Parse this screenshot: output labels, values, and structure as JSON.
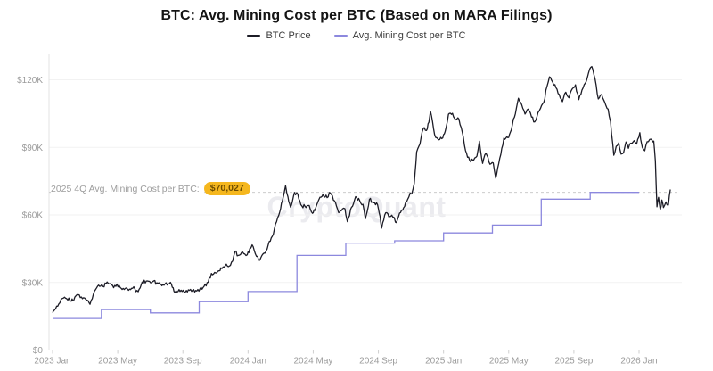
{
  "header": {
    "title": "BTC: Avg. Mining Cost per BTC (Based on MARA Filings)",
    "legend": [
      {
        "label": "BTC Price",
        "color": "#1c1c26"
      },
      {
        "label": "Avg. Mining Cost per BTC",
        "color": "#8c88de"
      }
    ]
  },
  "watermark": "CryptoQuant",
  "annotation": {
    "label": "2025 4Q Avg. Mining Cost per BTC:",
    "value": "$70,027",
    "value_k": 70.027,
    "badge_bg": "#f5b71e",
    "badge_text_color": "#6f4d00",
    "line_color": "#cccccc"
  },
  "chart_data": {
    "type": "line",
    "title": "BTC: Avg. Mining Cost per BTC (Based on MARA Filings)",
    "x_unit": "months since 2023-01",
    "y_unit": "USD thousands",
    "ylim": [
      0,
      130
    ],
    "grid": "horizontal",
    "legend_position": "top",
    "x_ticks": {
      "positions": [
        0,
        4,
        8,
        12,
        16,
        20,
        24,
        28,
        32,
        36
      ],
      "labels": [
        "2023 Jan",
        "2023 May",
        "2023 Sep",
        "2024 Jan",
        "2024 May",
        "2024 Sep",
        "2025 Jan",
        "2025 May",
        "2025 Sep",
        "2026 Jan"
      ]
    },
    "y_ticks": {
      "values": [
        0,
        30,
        60,
        90,
        120
      ],
      "labels": [
        "$0",
        "$30K",
        "$60K",
        "$90K",
        "$120K"
      ]
    },
    "series": [
      {
        "name": "BTC Price",
        "color": "#1c1c26",
        "style": "line",
        "points": [
          [
            0.0,
            16.6
          ],
          [
            0.25,
            19.5
          ],
          [
            0.45,
            21.0
          ],
          [
            0.6,
            22.9
          ],
          [
            0.8,
            23.0
          ],
          [
            1.0,
            23.1
          ],
          [
            1.15,
            21.7
          ],
          [
            1.3,
            22.1
          ],
          [
            1.5,
            24.6
          ],
          [
            1.7,
            23.3
          ],
          [
            1.9,
            23.2
          ],
          [
            2.05,
            22.4
          ],
          [
            2.3,
            20.3
          ],
          [
            2.5,
            24.7
          ],
          [
            2.7,
            27.6
          ],
          [
            2.95,
            28.4
          ],
          [
            3.1,
            28.2
          ],
          [
            3.35,
            30.2
          ],
          [
            3.55,
            29.5
          ],
          [
            3.75,
            27.7
          ],
          [
            3.95,
            29.3
          ],
          [
            4.15,
            27.8
          ],
          [
            4.4,
            26.9
          ],
          [
            4.6,
            27.1
          ],
          [
            4.85,
            27.4
          ],
          [
            5.05,
            27.2
          ],
          [
            5.25,
            25.9
          ],
          [
            5.5,
            30.2
          ],
          [
            5.75,
            30.6
          ],
          [
            5.95,
            30.5
          ],
          [
            6.15,
            30.4
          ],
          [
            6.4,
            29.9
          ],
          [
            6.65,
            29.2
          ],
          [
            6.9,
            29.3
          ],
          [
            7.1,
            29.4
          ],
          [
            7.3,
            29.2
          ],
          [
            7.45,
            26.1
          ],
          [
            7.7,
            26.0
          ],
          [
            7.95,
            26.0
          ],
          [
            8.15,
            25.8
          ],
          [
            8.4,
            26.5
          ],
          [
            8.6,
            26.6
          ],
          [
            8.85,
            26.2
          ],
          [
            9.05,
            27.2
          ],
          [
            9.3,
            28.3
          ],
          [
            9.55,
            30.1
          ],
          [
            9.75,
            34.0
          ],
          [
            9.95,
            34.5
          ],
          [
            10.15,
            35.0
          ],
          [
            10.4,
            36.2
          ],
          [
            10.6,
            37.4
          ],
          [
            10.85,
            37.3
          ],
          [
            11.05,
            39.5
          ],
          [
            11.2,
            43.8
          ],
          [
            11.4,
            42.0
          ],
          [
            11.6,
            43.3
          ],
          [
            11.8,
            42.6
          ],
          [
            11.95,
            42.3
          ],
          [
            12.1,
            45.0
          ],
          [
            12.25,
            46.7
          ],
          [
            12.45,
            42.6
          ],
          [
            12.65,
            40.0
          ],
          [
            12.85,
            42.0
          ],
          [
            13.05,
            43.1
          ],
          [
            13.3,
            48.2
          ],
          [
            13.55,
            51.5
          ],
          [
            13.75,
            57.0
          ],
          [
            13.95,
            61.5
          ],
          [
            14.1,
            66.1
          ],
          [
            14.3,
            73.0
          ],
          [
            14.45,
            68.0
          ],
          [
            14.6,
            63.5
          ],
          [
            14.85,
            70.0
          ],
          [
            15.05,
            69.3
          ],
          [
            15.3,
            64.0
          ],
          [
            15.5,
            63.8
          ],
          [
            15.75,
            64.2
          ],
          [
            15.95,
            60.7
          ],
          [
            16.1,
            62.0
          ],
          [
            16.35,
            66.8
          ],
          [
            16.6,
            69.2
          ],
          [
            16.85,
            67.7
          ],
          [
            17.05,
            69.8
          ],
          [
            17.3,
            66.3
          ],
          [
            17.55,
            61.1
          ],
          [
            17.8,
            62.7
          ],
          [
            17.95,
            62.7
          ],
          [
            18.1,
            57.0
          ],
          [
            18.35,
            63.4
          ],
          [
            18.6,
            68.1
          ],
          [
            18.85,
            66.4
          ],
          [
            19.05,
            64.7
          ],
          [
            19.2,
            58.2
          ],
          [
            19.45,
            66.9
          ],
          [
            19.7,
            65.4
          ],
          [
            19.95,
            64.6
          ],
          [
            20.1,
            59.4
          ],
          [
            20.2,
            54.1
          ],
          [
            20.45,
            61.0
          ],
          [
            20.7,
            59.3
          ],
          [
            20.95,
            59.0
          ],
          [
            21.1,
            56.6
          ],
          [
            21.3,
            60.8
          ],
          [
            21.55,
            63.2
          ],
          [
            21.8,
            67.0
          ],
          [
            21.95,
            69.8
          ],
          [
            22.05,
            69.4
          ],
          [
            22.2,
            74.0
          ],
          [
            22.35,
            88.0
          ],
          [
            22.55,
            91.5
          ],
          [
            22.75,
            98.2
          ],
          [
            22.95,
            97.5
          ],
          [
            23.1,
            101.1
          ],
          [
            23.2,
            106.1
          ],
          [
            23.45,
            95.7
          ],
          [
            23.7,
            93.4
          ],
          [
            23.95,
            94.2
          ],
          [
            24.1,
            97.1
          ],
          [
            24.3,
            104.7
          ],
          [
            24.55,
            105.1
          ],
          [
            24.75,
            102.2
          ],
          [
            24.95,
            102.5
          ],
          [
            25.15,
            96.7
          ],
          [
            25.35,
            88.6
          ],
          [
            25.6,
            84.3
          ],
          [
            25.85,
            84.4
          ],
          [
            26.05,
            86.1
          ],
          [
            26.2,
            92.7
          ],
          [
            26.4,
            82.9
          ],
          [
            26.6,
            87.4
          ],
          [
            26.85,
            82.5
          ],
          [
            27.05,
            83.1
          ],
          [
            27.2,
            76.3
          ],
          [
            27.45,
            85.1
          ],
          [
            27.7,
            94.1
          ],
          [
            27.95,
            94.3
          ],
          [
            28.1,
            96.7
          ],
          [
            28.35,
            103.4
          ],
          [
            28.6,
            111.8
          ],
          [
            28.8,
            108.9
          ],
          [
            29.0,
            104.8
          ],
          [
            29.2,
            107.0
          ],
          [
            29.4,
            103.5
          ],
          [
            29.6,
            101.3
          ],
          [
            29.8,
            105.5
          ],
          [
            29.95,
            107.3
          ],
          [
            30.15,
            110.0
          ],
          [
            30.35,
            117.0
          ],
          [
            30.5,
            121.3
          ],
          [
            30.7,
            119.0
          ],
          [
            30.9,
            116.5
          ],
          [
            31.1,
            113.5
          ],
          [
            31.3,
            110.3
          ],
          [
            31.5,
            114.5
          ],
          [
            31.7,
            112.0
          ],
          [
            31.9,
            116.0
          ],
          [
            32.1,
            117.8
          ],
          [
            32.3,
            111.2
          ],
          [
            32.5,
            115.5
          ],
          [
            32.7,
            118.5
          ],
          [
            32.9,
            123.0
          ],
          [
            33.1,
            125.9
          ],
          [
            33.3,
            120.5
          ],
          [
            33.5,
            111.5
          ],
          [
            33.7,
            113.5
          ],
          [
            33.9,
            110.0
          ],
          [
            34.1,
            107.0
          ],
          [
            34.25,
            101.5
          ],
          [
            34.45,
            86.5
          ],
          [
            34.6,
            90.5
          ],
          [
            34.75,
            92.0
          ],
          [
            34.9,
            87.0
          ],
          [
            35.05,
            87.6
          ],
          [
            35.2,
            92.4
          ],
          [
            35.35,
            89.6
          ],
          [
            35.5,
            91.9
          ],
          [
            35.7,
            93.0
          ],
          [
            35.85,
            91.5
          ],
          [
            36.05,
            96.5
          ],
          [
            36.2,
            90.0
          ],
          [
            36.35,
            88.5
          ],
          [
            36.5,
            92.5
          ],
          [
            36.65,
            93.5
          ],
          [
            36.8,
            93.2
          ],
          [
            36.9,
            92.8
          ],
          [
            37.0,
            84.0
          ],
          [
            37.1,
            63.6
          ],
          [
            37.2,
            67.8
          ],
          [
            37.3,
            62.4
          ],
          [
            37.4,
            66.6
          ],
          [
            37.5,
            63.3
          ],
          [
            37.65,
            65.8
          ],
          [
            37.8,
            64.4
          ],
          [
            37.92,
            71.3
          ]
        ]
      },
      {
        "name": "Avg. Mining Cost per BTC",
        "color": "#8c88de",
        "style": "step",
        "quarters": [
          {
            "label": "2023 Q1",
            "value_k": 14.0
          },
          {
            "label": "2023 Q2",
            "value_k": 18.0
          },
          {
            "label": "2023 Q3",
            "value_k": 16.5
          },
          {
            "label": "2023 Q4",
            "value_k": 21.5
          },
          {
            "label": "2024 Q1",
            "value_k": 26.0
          },
          {
            "label": "2024 Q2",
            "value_k": 42.0
          },
          {
            "label": "2024 Q3",
            "value_k": 47.5
          },
          {
            "label": "2024 Q4",
            "value_k": 48.5
          },
          {
            "label": "2025 Q1",
            "value_k": 52.0
          },
          {
            "label": "2025 Q2",
            "value_k": 55.5
          },
          {
            "label": "2025 Q3",
            "value_k": 67.0
          },
          {
            "label": "2025 Q4",
            "value_k": 70.027
          }
        ]
      }
    ]
  }
}
